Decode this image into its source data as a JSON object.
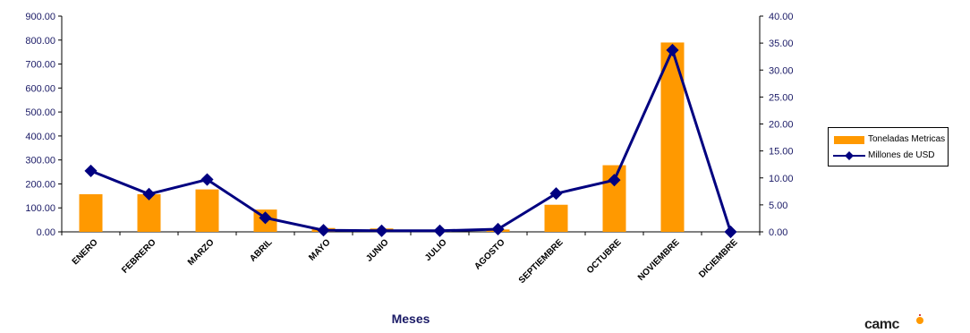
{
  "chart_data": {
    "type": "bar",
    "categories": [
      "ENERO",
      "FEBRERO",
      "MARZO",
      "ABRIL",
      "MAYO",
      "JUNIO",
      "JULIO",
      "AGOSTO",
      "SEPTIEMBRE",
      "OCTUBRE",
      "NOVIEMBRE",
      "DICIEMBRE"
    ],
    "series": [
      {
        "name": "Toneladas Metricas",
        "type": "bar",
        "axis": "left",
        "color": "#ff9900",
        "values": [
          157,
          157,
          177,
          93,
          16,
          14,
          4,
          10,
          113,
          278,
          790,
          0
        ]
      },
      {
        "name": "Millones de USD",
        "type": "line",
        "axis": "right",
        "color": "#000080",
        "values": [
          11.3,
          7.0,
          9.7,
          2.6,
          0.3,
          0.2,
          0.2,
          0.5,
          7.1,
          9.6,
          33.7,
          0.0
        ]
      }
    ],
    "xlabel": "Meses",
    "ylim_left": [
      0,
      900
    ],
    "ylim_right": [
      0,
      40
    ],
    "yticks_left": [
      "0.00",
      "100.00",
      "200.00",
      "300.00",
      "400.00",
      "500.00",
      "600.00",
      "700.00",
      "800.00",
      "900.00"
    ],
    "yticks_right": [
      "0.00",
      "5.00",
      "10.00",
      "15.00",
      "20.00",
      "25.00",
      "30.00",
      "35.00",
      "40.00"
    ],
    "legend_position": "right"
  },
  "legend": {
    "items": [
      {
        "label": "Toneladas Metricas"
      },
      {
        "label": "Millones de USD"
      }
    ]
  },
  "logo": {
    "text": "camc"
  }
}
